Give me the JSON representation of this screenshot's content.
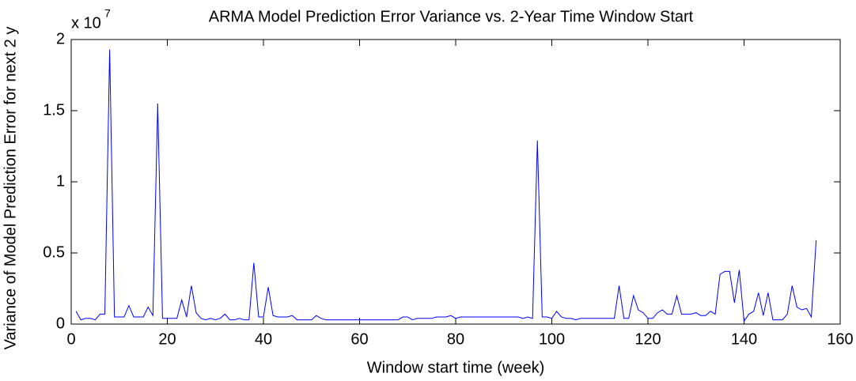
{
  "chart_data": {
    "type": "line",
    "title": "ARMA Model Prediction Error Variance vs. 2-Year Time Window Start",
    "x_label": "Window start time (week)",
    "y_label": "Variance of Model Prediction Error for next 2 y",
    "y_multiplier": {
      "base": "x 10",
      "exponent": "7"
    },
    "color": "#0000ff",
    "x": [
      1,
      2,
      3,
      4,
      5,
      6,
      7,
      8,
      9,
      10,
      11,
      12,
      13,
      14,
      15,
      16,
      17,
      18,
      19,
      20,
      21,
      22,
      23,
      24,
      25,
      26,
      27,
      28,
      29,
      30,
      31,
      32,
      33,
      34,
      35,
      36,
      37,
      38,
      39,
      40,
      41,
      42,
      43,
      44,
      45,
      46,
      47,
      48,
      49,
      50,
      51,
      52,
      53,
      54,
      55,
      56,
      57,
      58,
      59,
      60,
      61,
      62,
      63,
      64,
      65,
      66,
      67,
      68,
      69,
      70,
      71,
      72,
      73,
      74,
      75,
      76,
      77,
      78,
      79,
      80,
      81,
      82,
      83,
      84,
      85,
      86,
      87,
      88,
      89,
      90,
      91,
      92,
      93,
      94,
      95,
      96,
      97,
      98,
      99,
      100,
      101,
      102,
      103,
      104,
      105,
      106,
      107,
      108,
      109,
      110,
      111,
      112,
      113,
      114,
      115,
      116,
      117,
      118,
      119,
      120,
      121,
      122,
      123,
      124,
      125,
      126,
      127,
      128,
      129,
      130,
      131,
      132,
      133,
      134,
      135,
      136,
      137,
      138,
      139,
      140,
      141,
      142,
      143,
      144,
      145,
      146,
      147,
      148,
      149,
      150,
      151,
      152,
      153,
      154,
      155
    ],
    "values": [
      0.09,
      0.03,
      0.04,
      0.04,
      0.03,
      0.07,
      0.07,
      1.93,
      0.05,
      0.05,
      0.05,
      0.13,
      0.05,
      0.05,
      0.05,
      0.12,
      0.06,
      1.55,
      0.04,
      0.04,
      0.04,
      0.04,
      0.17,
      0.05,
      0.27,
      0.08,
      0.04,
      0.03,
      0.04,
      0.03,
      0.04,
      0.07,
      0.03,
      0.03,
      0.04,
      0.03,
      0.03,
      0.43,
      0.05,
      0.05,
      0.26,
      0.06,
      0.05,
      0.05,
      0.05,
      0.06,
      0.03,
      0.03,
      0.03,
      0.03,
      0.06,
      0.04,
      0.03,
      0.03,
      0.03,
      0.03,
      0.03,
      0.03,
      0.03,
      0.03,
      0.03,
      0.03,
      0.03,
      0.03,
      0.03,
      0.03,
      0.03,
      0.03,
      0.05,
      0.05,
      0.03,
      0.04,
      0.04,
      0.04,
      0.04,
      0.05,
      0.05,
      0.05,
      0.06,
      0.04,
      0.05,
      0.05,
      0.05,
      0.05,
      0.05,
      0.05,
      0.05,
      0.05,
      0.05,
      0.05,
      0.05,
      0.05,
      0.05,
      0.04,
      0.05,
      0.04,
      1.29,
      0.05,
      0.05,
      0.04,
      0.09,
      0.05,
      0.04,
      0.04,
      0.03,
      0.04,
      0.04,
      0.04,
      0.04,
      0.04,
      0.04,
      0.04,
      0.04,
      0.27,
      0.04,
      0.04,
      0.2,
      0.1,
      0.08,
      0.04,
      0.04,
      0.08,
      0.1,
      0.07,
      0.07,
      0.2,
      0.07,
      0.07,
      0.07,
      0.08,
      0.06,
      0.06,
      0.09,
      0.07,
      0.35,
      0.37,
      0.37,
      0.15,
      0.38,
      0.02,
      0.07,
      0.09,
      0.22,
      0.06,
      0.22,
      0.03,
      0.03,
      0.03,
      0.07,
      0.27,
      0.12,
      0.1,
      0.11,
      0.05,
      0.59
    ],
    "xlim": [
      0,
      160
    ],
    "xticks": [
      0,
      20,
      40,
      60,
      80,
      100,
      120,
      140,
      160
    ],
    "ylim": [
      0,
      2
    ],
    "yticks": [
      0,
      0.5,
      1,
      1.5,
      2
    ],
    "grid": false
  }
}
